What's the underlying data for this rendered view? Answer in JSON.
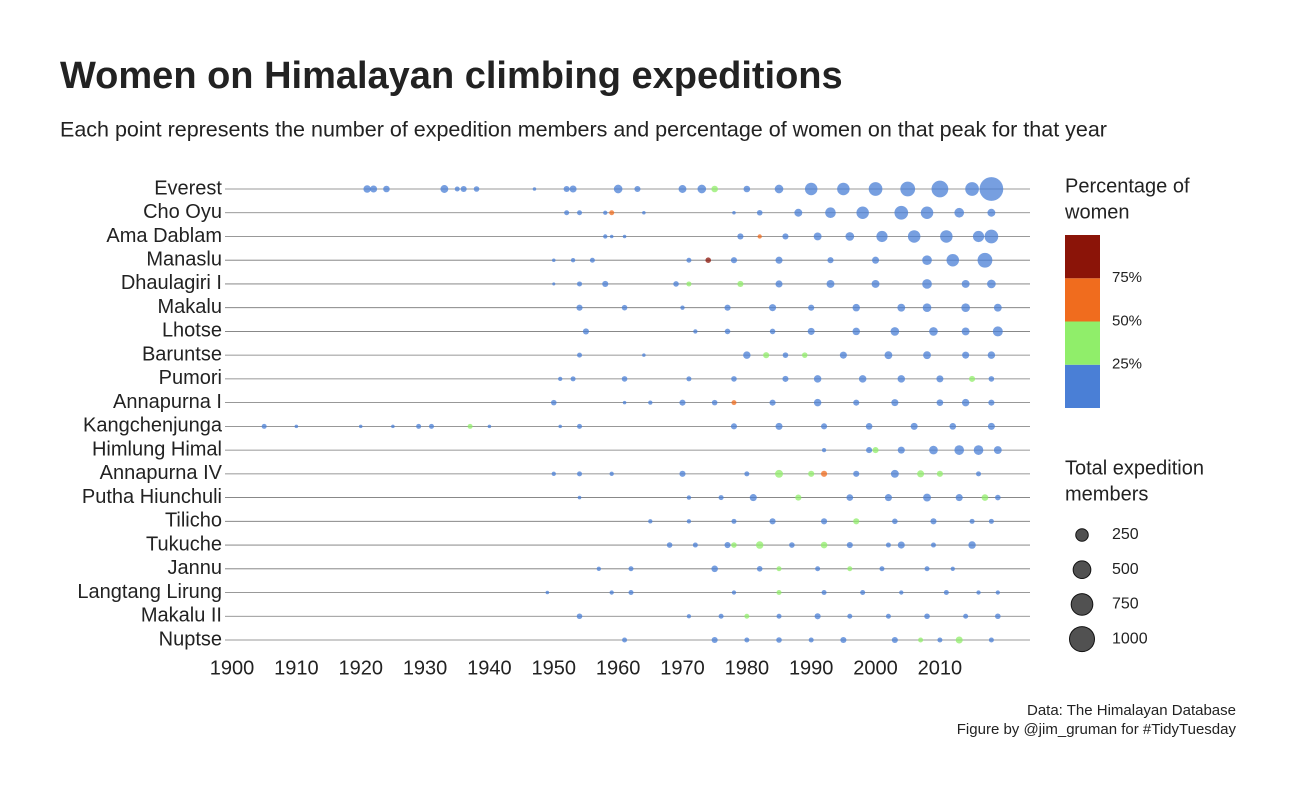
{
  "chart_data": {
    "type": "bubble",
    "title": "Women on Himalayan climbing expeditions",
    "subtitle": "Each point represents the number of expedition members and percentage of women on that peak for that year",
    "caption": [
      "Data: The Himalayan Database",
      "Figure by @jim_gruman for #TidyTuesday"
    ],
    "xlim": [
      1900,
      2024
    ],
    "xticks": [
      1900,
      1910,
      1920,
      1930,
      1940,
      1950,
      1960,
      1970,
      1980,
      1990,
      2000,
      2010
    ],
    "color_scale": {
      "title": [
        "Percentage of",
        "women"
      ],
      "lim": [
        0,
        100
      ],
      "colors": [
        "#4a7fd6",
        "#90ee6a",
        "#f06c1e",
        "#8b1408"
      ],
      "breaks": [
        {
          "value": 25,
          "label": "25%"
        },
        {
          "value": 50,
          "label": "50%"
        },
        {
          "value": 75,
          "label": "75%"
        }
      ]
    },
    "size_legend": {
      "title": [
        "Total expedition",
        "members"
      ],
      "values": [
        250,
        500,
        750,
        1000
      ]
    },
    "series": [
      {
        "name": "Everest",
        "x": [
          1921,
          1922,
          1924,
          1933,
          1935,
          1936,
          1938,
          1947,
          1952,
          1953,
          1960,
          1963,
          1970,
          1973,
          1975,
          1980,
          1985,
          1990,
          1995,
          2000,
          2005,
          2010,
          2015,
          2018
        ],
        "members": [
          90,
          80,
          70,
          100,
          40,
          60,
          50,
          20,
          60,
          80,
          120,
          60,
          100,
          120,
          70,
          70,
          120,
          250,
          250,
          300,
          350,
          450,
          300,
          900
        ],
        "women_pct": [
          0,
          0,
          0,
          0,
          0,
          0,
          0,
          0,
          0,
          0,
          0,
          5,
          5,
          5,
          30,
          5,
          5,
          8,
          10,
          10,
          10,
          12,
          12,
          14
        ]
      },
      {
        "name": "Cho Oyu",
        "x": [
          1952,
          1954,
          1958,
          1959,
          1964,
          1978,
          1982,
          1988,
          1993,
          1998,
          2004,
          2008,
          2013,
          2018
        ],
        "members": [
          40,
          40,
          30,
          40,
          20,
          20,
          50,
          100,
          180,
          250,
          300,
          250,
          150,
          100
        ],
        "women_pct": [
          0,
          0,
          5,
          60,
          0,
          10,
          10,
          10,
          12,
          12,
          12,
          15,
          15,
          15
        ]
      },
      {
        "name": "Ama Dablam",
        "x": [
          1958,
          1959,
          1961,
          1979,
          1982,
          1986,
          1991,
          1996,
          2001,
          2006,
          2011,
          2016,
          2018
        ],
        "members": [
          30,
          20,
          20,
          60,
          30,
          60,
          100,
          120,
          200,
          250,
          250,
          200,
          300
        ],
        "women_pct": [
          0,
          0,
          0,
          10,
          55,
          10,
          12,
          12,
          15,
          15,
          15,
          18,
          18
        ]
      },
      {
        "name": "Manaslu",
        "x": [
          1950,
          1953,
          1956,
          1971,
          1974,
          1978,
          1985,
          1993,
          2000,
          2008,
          2012,
          2017
        ],
        "members": [
          20,
          30,
          40,
          40,
          50,
          60,
          80,
          60,
          80,
          150,
          250,
          350
        ],
        "women_pct": [
          0,
          0,
          0,
          0,
          80,
          5,
          5,
          10,
          10,
          12,
          12,
          15
        ]
      },
      {
        "name": "Dhaulagiri I",
        "x": [
          1950,
          1954,
          1958,
          1969,
          1971,
          1979,
          1985,
          1993,
          2000,
          2008,
          2014,
          2018
        ],
        "members": [
          15,
          40,
          60,
          50,
          40,
          60,
          80,
          100,
          100,
          150,
          100,
          120
        ],
        "women_pct": [
          0,
          0,
          0,
          5,
          30,
          30,
          8,
          8,
          10,
          10,
          12,
          12
        ]
      },
      {
        "name": "Makalu",
        "x": [
          1954,
          1961,
          1970,
          1977,
          1984,
          1990,
          1997,
          2004,
          2008,
          2014,
          2019
        ],
        "members": [
          60,
          50,
          30,
          60,
          80,
          60,
          90,
          100,
          120,
          120,
          100
        ],
        "women_pct": [
          0,
          0,
          5,
          5,
          8,
          8,
          10,
          10,
          10,
          12,
          12
        ]
      },
      {
        "name": "Lhotse",
        "x": [
          1955,
          1972,
          1977,
          1984,
          1990,
          1997,
          2003,
          2009,
          2014,
          2019
        ],
        "members": [
          60,
          30,
          50,
          50,
          80,
          90,
          120,
          120,
          100,
          160
        ],
        "women_pct": [
          0,
          5,
          5,
          8,
          8,
          10,
          10,
          12,
          12,
          12
        ]
      },
      {
        "name": "Baruntse",
        "x": [
          1954,
          1964,
          1980,
          1983,
          1986,
          1989,
          1995,
          2002,
          2008,
          2014,
          2018
        ],
        "members": [
          40,
          20,
          90,
          60,
          50,
          50,
          80,
          100,
          100,
          80,
          90
        ],
        "women_pct": [
          0,
          0,
          10,
          30,
          10,
          30,
          10,
          12,
          12,
          15,
          15
        ]
      },
      {
        "name": "Pumori",
        "x": [
          1951,
          1953,
          1961,
          1971,
          1978,
          1986,
          1991,
          1998,
          2004,
          2010,
          2015,
          2018
        ],
        "members": [
          30,
          40,
          50,
          40,
          50,
          60,
          90,
          90,
          90,
          80,
          60,
          50
        ],
        "women_pct": [
          0,
          0,
          0,
          5,
          8,
          10,
          10,
          12,
          12,
          12,
          30,
          15
        ]
      },
      {
        "name": "Annapurna I",
        "x": [
          1950,
          1961,
          1965,
          1970,
          1975,
          1978,
          1984,
          1991,
          1997,
          2003,
          2010,
          2014,
          2018
        ],
        "members": [
          50,
          20,
          30,
          60,
          50,
          40,
          60,
          90,
          60,
          80,
          70,
          90,
          60
        ],
        "women_pct": [
          0,
          0,
          0,
          5,
          5,
          60,
          8,
          8,
          10,
          10,
          12,
          12,
          12
        ]
      },
      {
        "name": "Kangchenjunga",
        "x": [
          1905,
          1910,
          1920,
          1925,
          1929,
          1931,
          1937,
          1940,
          1951,
          1954,
          1978,
          1985,
          1992,
          1999,
          2006,
          2012,
          2018
        ],
        "members": [
          40,
          20,
          20,
          20,
          40,
          40,
          40,
          20,
          20,
          40,
          60,
          80,
          60,
          70,
          80,
          70,
          80
        ],
        "women_pct": [
          0,
          0,
          0,
          0,
          0,
          0,
          40,
          0,
          0,
          0,
          5,
          5,
          8,
          10,
          10,
          12,
          12
        ]
      },
      {
        "name": "Himlung Himal",
        "x": [
          1992,
          1999,
          2000,
          2004,
          2009,
          2013,
          2016,
          2019
        ],
        "members": [
          30,
          60,
          60,
          80,
          120,
          150,
          150,
          100
        ],
        "women_pct": [
          5,
          10,
          30,
          12,
          12,
          15,
          15,
          15
        ]
      },
      {
        "name": "Annapurna IV",
        "x": [
          1950,
          1954,
          1959,
          1970,
          1980,
          1985,
          1990,
          1992,
          1997,
          2003,
          2007,
          2010,
          2016
        ],
        "members": [
          30,
          40,
          30,
          60,
          40,
          100,
          60,
          60,
          60,
          100,
          80,
          60,
          40
        ],
        "women_pct": [
          0,
          0,
          0,
          5,
          8,
          30,
          30,
          55,
          10,
          10,
          30,
          30,
          12
        ]
      },
      {
        "name": "Putha Hiunchuli",
        "x": [
          1954,
          1971,
          1976,
          1981,
          1988,
          1996,
          2002,
          2008,
          2013,
          2017,
          2019
        ],
        "members": [
          20,
          30,
          40,
          80,
          60,
          70,
          80,
          100,
          80,
          70,
          50
        ],
        "women_pct": [
          0,
          5,
          5,
          8,
          30,
          10,
          10,
          12,
          12,
          30,
          12
        ]
      },
      {
        "name": "Tilicho",
        "x": [
          1965,
          1971,
          1978,
          1984,
          1992,
          1997,
          2003,
          2009,
          2015,
          2018
        ],
        "members": [
          30,
          30,
          40,
          60,
          60,
          60,
          50,
          60,
          40,
          40
        ],
        "women_pct": [
          0,
          5,
          5,
          8,
          10,
          30,
          10,
          12,
          12,
          12
        ]
      },
      {
        "name": "Tukuche",
        "x": [
          1968,
          1972,
          1977,
          1978,
          1982,
          1987,
          1992,
          1996,
          2002,
          2004,
          2009,
          2015
        ],
        "members": [
          50,
          40,
          60,
          50,
          90,
          50,
          70,
          60,
          40,
          80,
          40,
          90
        ],
        "women_pct": [
          5,
          5,
          8,
          30,
          30,
          10,
          30,
          10,
          10,
          12,
          12,
          12
        ]
      },
      {
        "name": "Jannu",
        "x": [
          1957,
          1962,
          1975,
          1982,
          1985,
          1991,
          1996,
          2001,
          2008,
          2012
        ],
        "members": [
          30,
          40,
          70,
          50,
          40,
          40,
          40,
          40,
          40,
          30
        ],
        "women_pct": [
          0,
          0,
          5,
          8,
          30,
          10,
          30,
          10,
          12,
          12
        ]
      },
      {
        "name": "Langtang Lirung",
        "x": [
          1949,
          1959,
          1962,
          1978,
          1985,
          1992,
          1998,
          2004,
          2011,
          2016,
          2019
        ],
        "members": [
          20,
          30,
          40,
          30,
          40,
          40,
          40,
          30,
          40,
          30,
          30
        ],
        "women_pct": [
          0,
          0,
          0,
          5,
          30,
          8,
          10,
          10,
          12,
          12,
          12
        ]
      },
      {
        "name": "Makalu II",
        "x": [
          1954,
          1971,
          1976,
          1980,
          1985,
          1991,
          1996,
          2002,
          2008,
          2014,
          2019
        ],
        "members": [
          50,
          30,
          40,
          40,
          40,
          60,
          40,
          40,
          50,
          40,
          50
        ],
        "women_pct": [
          0,
          5,
          5,
          30,
          8,
          8,
          10,
          10,
          12,
          12,
          12
        ]
      },
      {
        "name": "Nuptse",
        "x": [
          1961,
          1975,
          1980,
          1985,
          1990,
          1995,
          2003,
          2007,
          2010,
          2013,
          2018
        ],
        "members": [
          40,
          60,
          40,
          50,
          40,
          60,
          60,
          40,
          40,
          80,
          40
        ],
        "women_pct": [
          0,
          5,
          5,
          8,
          8,
          10,
          10,
          30,
          12,
          30,
          12
        ]
      }
    ]
  }
}
